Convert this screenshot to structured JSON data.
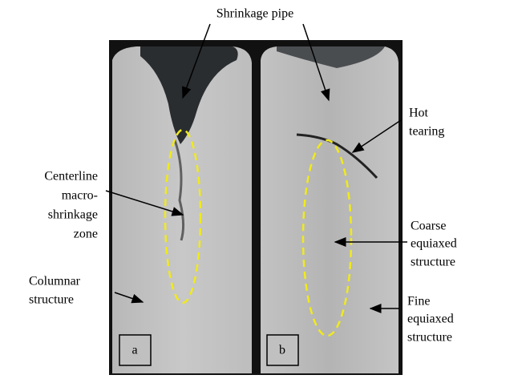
{
  "labels": {
    "shrinkage_pipe": [
      "Shrinkage pipe"
    ],
    "hot_tearing": [
      "Hot",
      "tearing"
    ],
    "centerline": [
      "Centerline",
      "macro-",
      "shrinkage",
      "zone"
    ],
    "columnar": [
      "Columnar",
      "structure"
    ],
    "coarse": [
      "Coarse",
      "equiaxed",
      "structure"
    ],
    "fine": [
      "Fine",
      "equiaxed",
      "structure"
    ]
  },
  "panels": [
    "a",
    "b"
  ]
}
